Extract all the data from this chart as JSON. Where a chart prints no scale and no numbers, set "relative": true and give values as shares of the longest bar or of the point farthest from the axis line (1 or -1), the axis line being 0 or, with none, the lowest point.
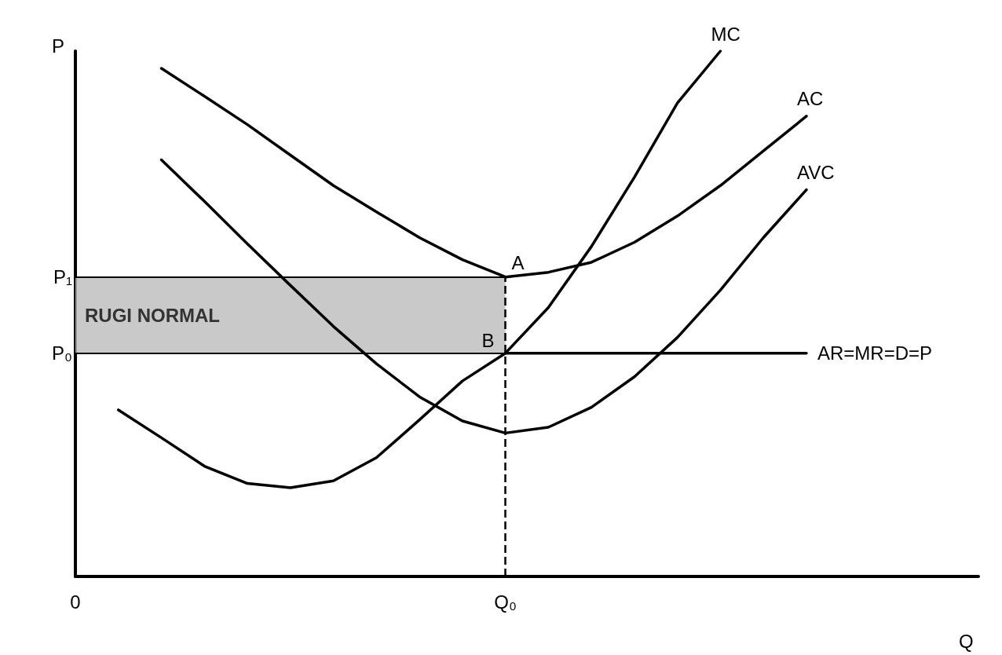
{
  "chart_data": {
    "type": "line",
    "relative": true,
    "xlabel": "Q",
    "ylabel": "P",
    "categories": [
      "0",
      null,
      null,
      null,
      null,
      null,
      null,
      null,
      null,
      null,
      "Q₀",
      null,
      null,
      null,
      null,
      null,
      null,
      null,
      null,
      null,
      null,
      null
    ],
    "series": [
      {
        "name": "AC",
        "color": "#000000",
        "values": [
          null,
          null,
          0.967,
          0.914,
          0.86,
          0.802,
          0.744,
          0.694,
          0.645,
          0.603,
          0.57,
          0.579,
          0.598,
          0.636,
          0.686,
          0.744,
          0.81,
          0.876,
          null,
          null,
          null,
          null
        ]
      },
      {
        "name": "AVC",
        "color": "#000000",
        "values": [
          null,
          null,
          0.793,
          0.714,
          0.633,
          0.554,
          0.476,
          0.405,
          0.342,
          0.296,
          0.273,
          0.284,
          0.322,
          0.38,
          0.455,
          0.545,
          0.645,
          0.736,
          null,
          null,
          null,
          null
        ]
      },
      {
        "name": "MC",
        "color": "#000000",
        "values": [
          null,
          0.317,
          0.264,
          0.21,
          0.177,
          0.169,
          0.182,
          0.226,
          0.298,
          0.372,
          0.425,
          0.512,
          0.628,
          0.76,
          0.901,
          1,
          null,
          null,
          null,
          null,
          null,
          null
        ]
      },
      {
        "name": "AR=MR=D=P",
        "color": "#000000",
        "values": [
          null,
          null,
          null,
          null,
          null,
          null,
          null,
          null,
          null,
          null,
          0.425,
          0.425,
          0.425,
          0.425,
          0.425,
          0.425,
          0.425,
          0.425,
          null,
          null,
          null,
          null
        ]
      }
    ],
    "ref_lines": [
      {
        "axis": "y",
        "value": 0.57,
        "label": "P₁",
        "color": "#000000",
        "line_style": "solid"
      },
      {
        "axis": "y",
        "value": 0.425,
        "label": "P₀",
        "color": "#000000",
        "line_style": "solid"
      },
      {
        "axis": "x",
        "value": "Q₀",
        "color": "#000000",
        "line_style": "dashed"
      }
    ],
    "bands": [
      {
        "axis": "y",
        "from": 0.425,
        "to": 0.57,
        "label": "RUGI NORMAL",
        "color": "#bbbbbb"
      }
    ],
    "annotations": [
      {
        "text": "A",
        "x": "Q₀",
        "y": 0.57
      },
      {
        "text": "B",
        "x": "Q₀",
        "y": 0.425
      }
    ],
    "marker": "none",
    "line_style": "solid",
    "grid": false,
    "legend": false
  }
}
